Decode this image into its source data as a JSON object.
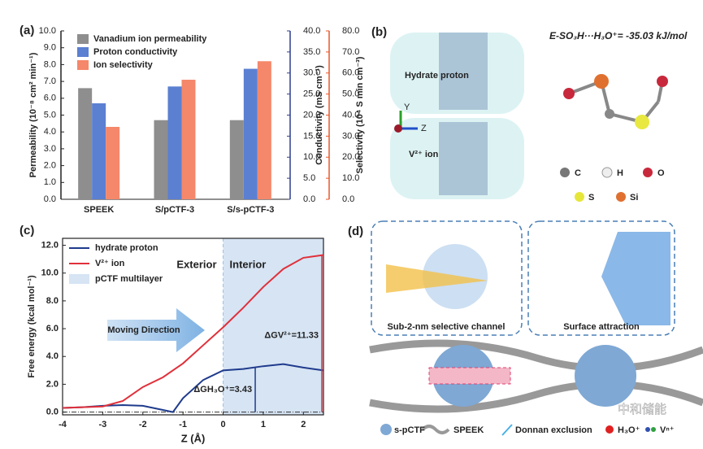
{
  "chart_data": [
    {
      "type": "bar",
      "panel_label": "(a)",
      "categories": [
        "SPEEK",
        "S/pCTF-3",
        "S/s-pCTF-3"
      ],
      "series": [
        {
          "name": "Vanadium ion permeability",
          "color": "#8e8e8e",
          "values": [
            6.6,
            4.7,
            4.7
          ]
        },
        {
          "name": "Proton conductivity",
          "color": "#5b80d2",
          "axis": "y2",
          "values": [
            22.8,
            26.8,
            31.0
          ]
        },
        {
          "name": "Ion selectivity",
          "color": "#f5876a",
          "axis": "y3",
          "values": [
            34.4,
            56.8,
            65.6
          ]
        }
      ],
      "ylabel": "Permeability (10⁻⁸ cm² min⁻¹)",
      "y2label": "Conductivity (mS cm⁻¹)",
      "y3label": "Selectivity (10⁴ S min cm⁻³)",
      "ylim": [
        0,
        10
      ],
      "y2lim": [
        0,
        40
      ],
      "y3lim": [
        0,
        80
      ],
      "ycolor": "#222222",
      "y2color": "#2d3f8e",
      "y3color": "#e8572a",
      "yticks": [
        {
          "value": 0,
          "label": "0.0"
        },
        {
          "value": 1,
          "label": "1.0"
        },
        {
          "value": 2,
          "label": "2.0"
        },
        {
          "value": 3,
          "label": "3.0"
        },
        {
          "value": 4,
          "label": "4.0"
        },
        {
          "value": 5,
          "label": "5.0"
        },
        {
          "value": 6,
          "label": "6.0"
        },
        {
          "value": 7,
          "label": "7.0"
        },
        {
          "value": 8,
          "label": "8.0"
        },
        {
          "value": 9,
          "label": "9.0"
        },
        {
          "value": 10,
          "label": "10.0"
        }
      ],
      "y2ticks": [
        {
          "value": 0,
          "label": "0.0"
        },
        {
          "value": 5,
          "label": "5.0"
        },
        {
          "value": 10,
          "label": "10.0"
        },
        {
          "value": 15,
          "label": "15.0"
        },
        {
          "value": 20,
          "label": "20.0"
        },
        {
          "value": 25,
          "label": "25.0"
        },
        {
          "value": 30,
          "label": "30.0"
        },
        {
          "value": 35,
          "label": "35.0"
        },
        {
          "value": 40,
          "label": "40.0"
        }
      ],
      "y3ticks": [
        {
          "value": 0,
          "label": "0.0"
        },
        {
          "value": 10,
          "label": "10.0"
        },
        {
          "value": 20,
          "label": "20.0"
        },
        {
          "value": 30,
          "label": "30.0"
        },
        {
          "value": 40,
          "label": "40.0"
        },
        {
          "value": 50,
          "label": "50.0"
        },
        {
          "value": 60,
          "label": "60.0"
        },
        {
          "value": 70,
          "label": "70.0"
        },
        {
          "value": 80,
          "label": "80.0"
        }
      ],
      "legend": "upper left"
    },
    {
      "type": "line",
      "panel_label": "(c)",
      "x": [
        -4,
        -3.5,
        -3,
        -2.5,
        -2,
        -1.5,
        -1.25,
        -1,
        -0.5,
        0,
        0.5,
        1,
        1.5,
        2,
        2.5
      ],
      "series": [
        {
          "name": "hydrate proton",
          "color": "#1f3b8c",
          "values": [
            0.3,
            0.35,
            0.45,
            0.5,
            0.45,
            0.15,
            0.0,
            1.0,
            2.3,
            3.0,
            3.1,
            3.3,
            3.45,
            3.2,
            3.0
          ]
        },
        {
          "name": "V²⁺ ion",
          "color": "#e0303a",
          "values": [
            0.3,
            0.35,
            0.4,
            0.8,
            1.8,
            2.5,
            3.0,
            3.5,
            4.8,
            6.1,
            7.5,
            9.0,
            10.3,
            11.1,
            11.3
          ]
        }
      ],
      "region": {
        "name": "pCTF multilayer",
        "color": "#d6e4f4",
        "x": [
          0,
          2.5
        ]
      },
      "xlabel": "Z (Å)",
      "ylabel": "Free energy (kcal mol⁻¹)",
      "xlim": [
        -4,
        2.5
      ],
      "ylim": [
        -0.2,
        12.5
      ],
      "xticks": [
        -4,
        -3,
        -2,
        -1,
        0,
        1,
        2
      ],
      "yticks": [
        {
          "value": 0,
          "label": "0.0"
        },
        {
          "value": 2,
          "label": "2.0"
        },
        {
          "value": 4,
          "label": "4.0"
        },
        {
          "value": 6,
          "label": "6.0"
        },
        {
          "value": 8,
          "label": "8.0"
        },
        {
          "value": 10,
          "label": "10.0"
        },
        {
          "value": 12,
          "label": "12.0"
        }
      ],
      "annotations": [
        "Exterior",
        "Interior",
        "Moving Direction",
        "ΔGV²⁺=11.33",
        "ΔGH₃O⁺=3.43"
      ],
      "legend": "upper left"
    }
  ],
  "panel_b": {
    "label": "(b)",
    "energy": "E-SO₃H···H₃O⁺= -35.03 kJ/mol",
    "tags": [
      "Hydrate proton",
      "V²⁺ ion"
    ],
    "axes": [
      "Y",
      "Z"
    ],
    "atoms": [
      "C",
      "H",
      "O",
      "S",
      "Si"
    ]
  },
  "panel_d": {
    "label": "(d)",
    "insets": [
      "Sub-2-nm selective channel",
      "Surface attraction"
    ],
    "legend": [
      "s-pCTF",
      "SPEEK",
      "Donnan exclusion",
      "H₃O⁺",
      "Vⁿ⁺"
    ],
    "watermark": "中和储能"
  }
}
